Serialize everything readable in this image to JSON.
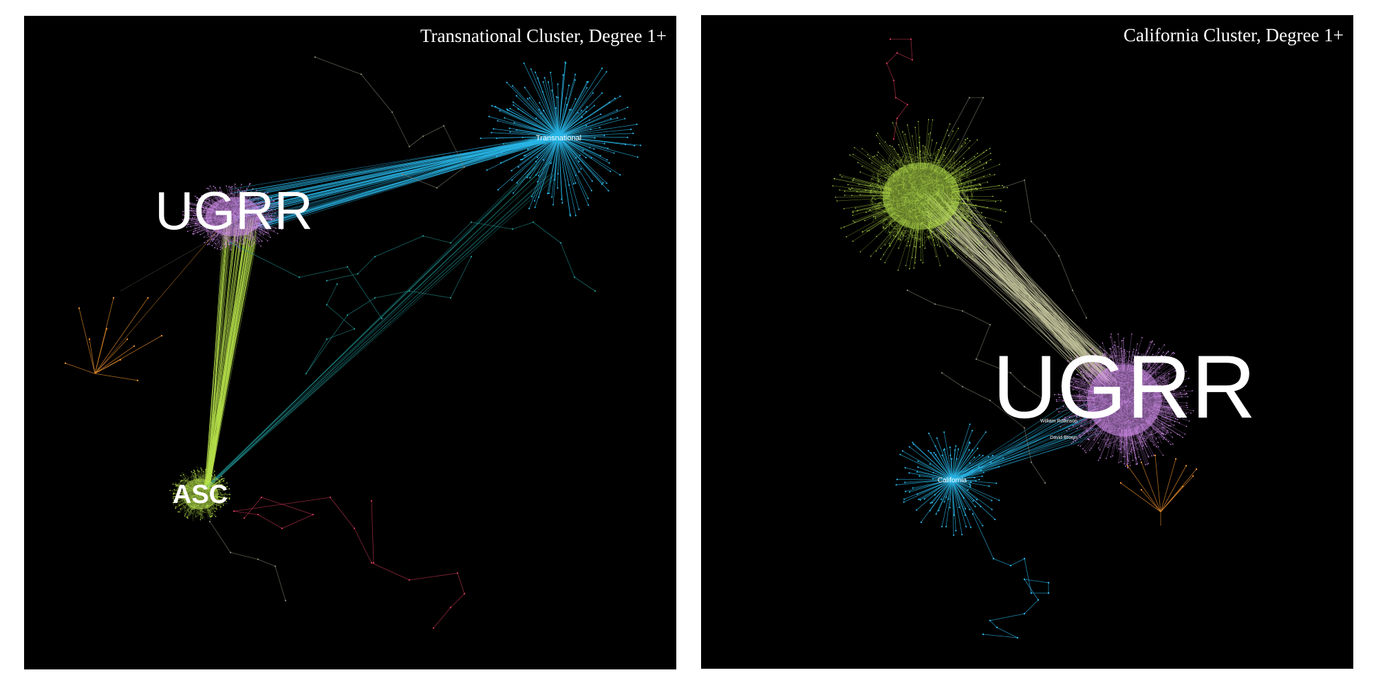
{
  "panels": [
    {
      "title": "Transnational Cluster, Degree 1+",
      "hubs": [
        {
          "label": "UGRR",
          "color": "#d58ff0"
        },
        {
          "label": "Transnational",
          "color": "#29b6e8"
        },
        {
          "label": "ASC",
          "color": "#b5e04a"
        }
      ]
    },
    {
      "title": "California Cluster, Degree 1+",
      "hubs": [
        {
          "label": "UGRR",
          "color": "#d58ff0"
        },
        {
          "label": "California",
          "color": "#29b6e8"
        },
        {
          "label": "William Robinson",
          "color": "#ffffff"
        },
        {
          "label": "David Brown",
          "color": "#ffffff"
        }
      ]
    }
  ],
  "colors": {
    "background": "#000000",
    "ugrr": "#d58ff0",
    "asc": "#b5e04a",
    "transnational": "#29b6e8",
    "orange_cluster": "#e08a2a",
    "red_cluster": "#c2354f",
    "teal_edges": "#1f8a8a",
    "gray_edges": "#7a7a6a"
  }
}
